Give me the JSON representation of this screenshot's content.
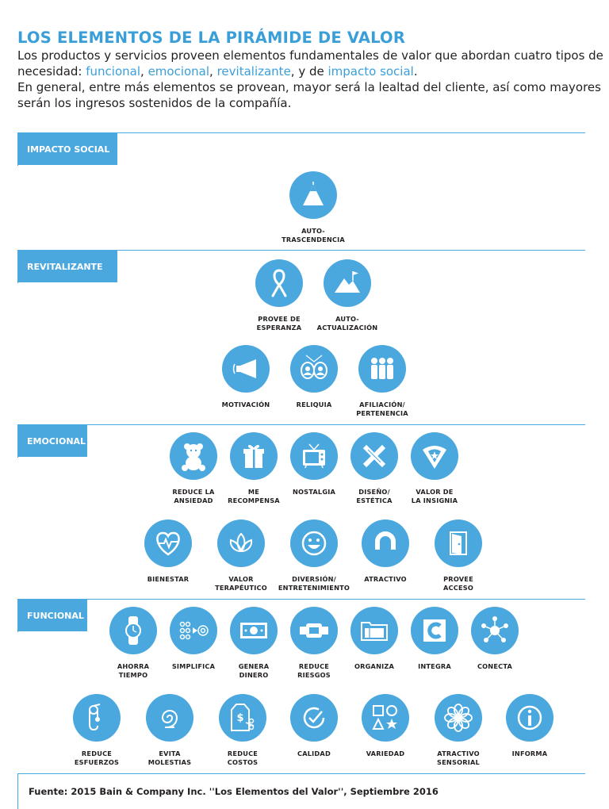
{
  "header": {
    "title": "LOS ELEMENTOS DE LA PIRÁMIDE DE VALOR",
    "intro": {
      "part1": "Los productos y servicios proveen elementos fundamentales de valor que abordan cuatro tipos de necesidad: ",
      "need1": "funcional",
      "sep1": ", ",
      "need2": "emocional",
      "sep2": ", ",
      "need3": "revitalizante",
      "sep3": ", y de ",
      "need4": "impacto social",
      "end1": ".",
      "part2": "En general, entre más elementos se provean, mayor será la lealtad del cliente, así como mayores serán los ingresos sostenidos de la compañía."
    }
  },
  "sections": {
    "impacto_social": {
      "label": "IMPACTO SOCIAL",
      "items": [
        {
          "label": "AUTO-\nTRASCENDENCIA",
          "icon": "pyramid-icon"
        }
      ]
    },
    "revitalizante": {
      "label": "REVITALIZANTE",
      "items": [
        {
          "label": "PROVEE DE\nESPERANZA",
          "icon": "ribbon-icon"
        },
        {
          "label": "AUTO-\nACTUALIZACIÓN",
          "icon": "mountain-flag-icon"
        },
        {
          "label": "MOTIVACIÓN",
          "icon": "megaphone-icon"
        },
        {
          "label": "RELIQUIA",
          "icon": "portraits-icon"
        },
        {
          "label": "AFILIACIÓN/\nPERTENENCIA",
          "icon": "group-icon"
        }
      ]
    },
    "emocional": {
      "label": "EMOCIONAL",
      "items": [
        {
          "label": "REDUCE LA\nANSIEDAD",
          "icon": "teddy-bear-icon"
        },
        {
          "label": "ME\nRECOMPENSA",
          "icon": "gift-icon"
        },
        {
          "label": "NOSTALGIA",
          "icon": "retro-tv-icon"
        },
        {
          "label": "DISEÑO/\nESTÉTICA",
          "icon": "pencil-ruler-icon"
        },
        {
          "label": "VALOR DE\nLA INSIGNIA",
          "icon": "badge-icon"
        },
        {
          "label": "BIENESTAR",
          "icon": "heartbeat-icon"
        },
        {
          "label": "VALOR\nTERAPÉUTICO",
          "icon": "lotus-icon"
        },
        {
          "label": "DIVERSIÓN/\nENTRETENIMIENTO",
          "icon": "smiley-icon"
        },
        {
          "label": "ATRACTIVO",
          "icon": "magnet-icon"
        },
        {
          "label": "PROVEE\nACCESO",
          "icon": "door-icon"
        }
      ]
    },
    "funcional": {
      "label": "FUNCIONAL",
      "items": [
        {
          "label": "AHORRA\nTIEMPO",
          "icon": "wristwatch-icon"
        },
        {
          "label": "SIMPLIFICA",
          "icon": "simplify-dots-icon"
        },
        {
          "label": "GENERA\nDINERO",
          "icon": "banknote-icon"
        },
        {
          "label": "REDUCE\nRIESGOS",
          "icon": "seatbelt-buckle-icon"
        },
        {
          "label": "ORGANIZA",
          "icon": "folders-icon"
        },
        {
          "label": "INTEGRA",
          "icon": "integrate-c-icon"
        },
        {
          "label": "CONECTA",
          "icon": "network-icon"
        },
        {
          "label": "REDUCE\nESFUERZOS",
          "icon": "pulley-icon"
        },
        {
          "label": "EVITA\nMOLESTIAS",
          "icon": "swirl-icon"
        },
        {
          "label": "REDUCE\nCOSTOS",
          "icon": "price-tag-scissors-icon"
        },
        {
          "label": "CALIDAD",
          "icon": "quality-check-icon"
        },
        {
          "label": "VARIEDAD",
          "icon": "shapes-icon"
        },
        {
          "label": "ATRACTIVO\nSENSORIAL",
          "icon": "flower-icon"
        },
        {
          "label": "INFORMA",
          "icon": "info-icon"
        }
      ]
    }
  },
  "footer": {
    "source": "Fuente: 2015 Bain & Company Inc. ''Los Elementos del Valor'', Septiembre 2016"
  },
  "colors": {
    "accent": "#4aa8df",
    "title": "#3a9fd8",
    "text": "#231f20"
  }
}
